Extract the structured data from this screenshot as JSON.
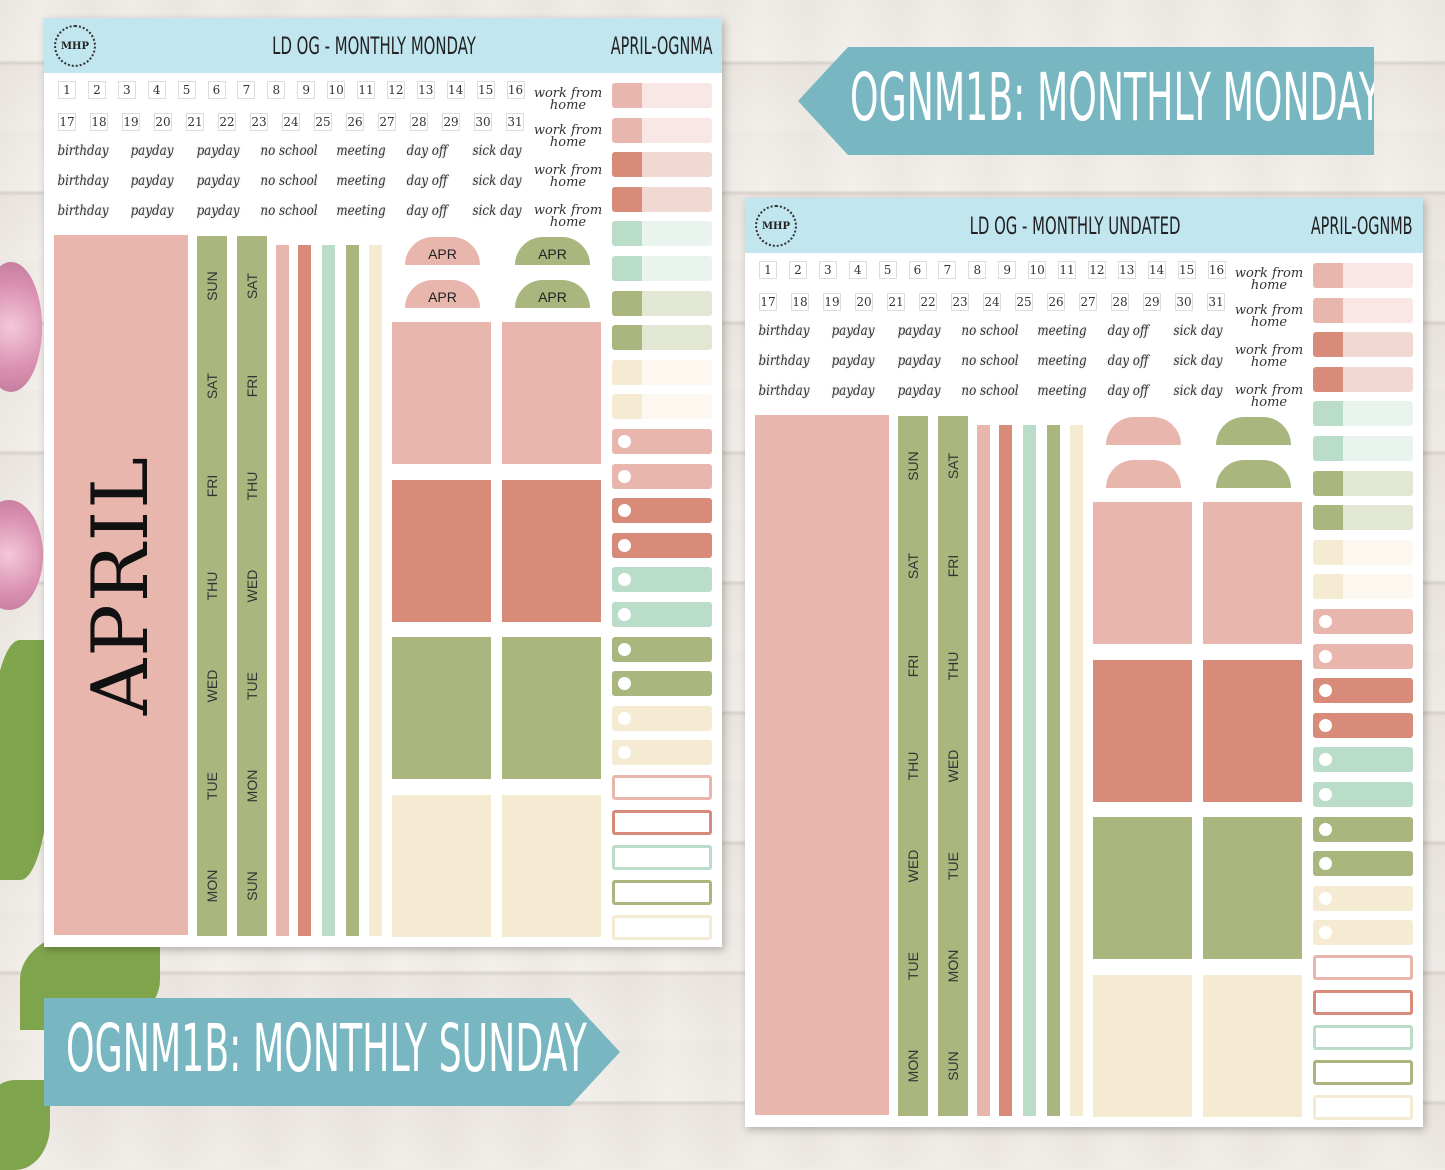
{
  "colors": {
    "pink": "#e9b6ae",
    "coral": "#d98b7a",
    "mint": "#b9ddc8",
    "green": "#a9b77f",
    "cream": "#f5ebd3",
    "header": "#c2e6f0",
    "banner": "#78b7c1"
  },
  "banners": {
    "top": "OGNM1B: MONTHLY MONDAY",
    "bottom": "OGNM1B: MONTHLY SUNDAY"
  },
  "sheets": [
    {
      "logo": "MHP",
      "title": "LD OG - MONTHLY MONDAY",
      "code": "APRIL-OGNMA",
      "month": "APRIL",
      "semis": [
        "APR",
        "APR",
        "APR",
        "APR"
      ],
      "numbers": [
        "1",
        "2",
        "3",
        "4",
        "5",
        "6",
        "7",
        "8",
        "9",
        "10",
        "11",
        "12",
        "13",
        "14",
        "15",
        "16",
        "17",
        "18",
        "19",
        "20",
        "21",
        "22",
        "23",
        "24",
        "25",
        "26",
        "27",
        "28",
        "29",
        "30",
        "31"
      ],
      "words": [
        "birthday",
        "payday",
        "payday",
        "no school",
        "meeting",
        "day off",
        "sick day"
      ],
      "wfh": "work from home",
      "strip1": [
        "SUN",
        "SAT",
        "FRI",
        "THU",
        "WED",
        "TUE",
        "MON"
      ],
      "strip2": [
        "SAT",
        "FRI",
        "THU",
        "WED",
        "TUE",
        "MON",
        "SUN"
      ]
    },
    {
      "logo": "MHP",
      "title": "LD OG - MONTHLY UNDATED",
      "code": "APRIL-OGNMB",
      "month": "",
      "semis": [
        "",
        "",
        "",
        ""
      ],
      "numbers": [
        "1",
        "2",
        "3",
        "4",
        "5",
        "6",
        "7",
        "8",
        "9",
        "10",
        "11",
        "12",
        "13",
        "14",
        "15",
        "16",
        "17",
        "18",
        "19",
        "20",
        "21",
        "22",
        "23",
        "24",
        "25",
        "26",
        "27",
        "28",
        "29",
        "30",
        "31"
      ],
      "words": [
        "birthday",
        "payday",
        "payday",
        "no school",
        "meeting",
        "day off",
        "sick day"
      ],
      "wfh": "work from home",
      "strip1": [
        "SUN",
        "SAT",
        "FRI",
        "THU",
        "WED",
        "TUE",
        "MON"
      ],
      "strip2": [
        "SAT",
        "FRI",
        "THU",
        "WED",
        "TUE",
        "MON",
        "SUN"
      ]
    }
  ]
}
